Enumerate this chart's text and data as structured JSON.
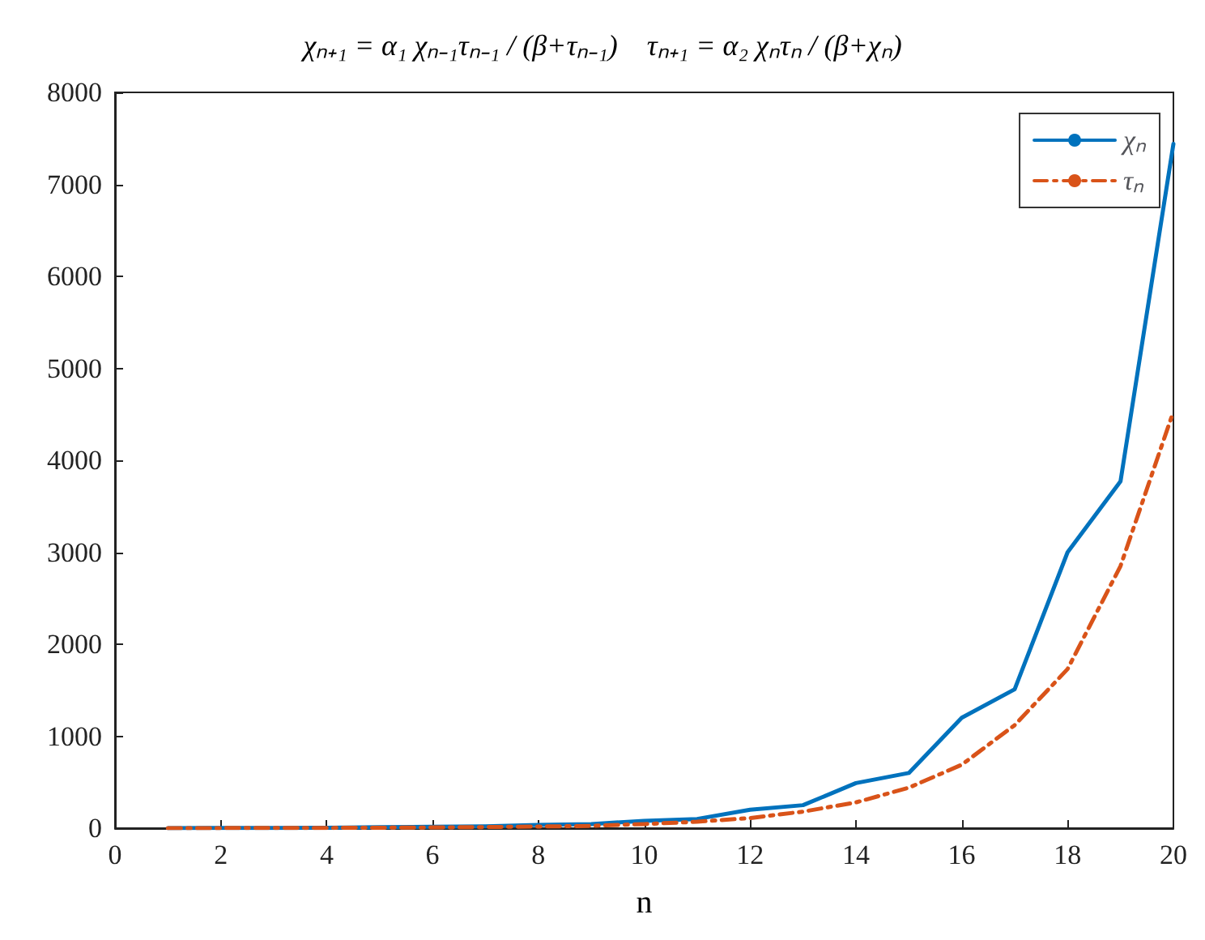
{
  "chart_data": {
    "type": "line",
    "title": "χₙ₊₁ = α₁ χₙ₋₁τₙ₋₁ / (β+τₙ₋₁)    τₙ₊₁ = α₂ χₙτₙ / (β+χₙ)",
    "xlabel": "n",
    "x": [
      1,
      2,
      3,
      4,
      5,
      6,
      7,
      8,
      9,
      10,
      11,
      12,
      13,
      14,
      15,
      16,
      17,
      18,
      19,
      20
    ],
    "series": [
      {
        "name": "χₙ",
        "color": "#0072bd",
        "line_style": "solid",
        "values": [
          1,
          2,
          3,
          5,
          10,
          15,
          20,
          35,
          45,
          80,
          100,
          200,
          250,
          490,
          600,
          1200,
          1510,
          3000,
          3770,
          7440
        ]
      },
      {
        "name": "τₙ",
        "color": "#d95319",
        "line_style": "dashed",
        "values": [
          1,
          1,
          2,
          3,
          5,
          8,
          12,
          18,
          25,
          45,
          70,
          110,
          180,
          280,
          440,
          690,
          1120,
          1730,
          2850,
          4530
        ]
      }
    ],
    "xlim": [
      0,
      20
    ],
    "xticks": [
      0,
      2,
      4,
      6,
      8,
      10,
      12,
      14,
      16,
      18,
      20
    ],
    "ylim": [
      0,
      8000
    ],
    "yticks": [
      0,
      1000,
      2000,
      3000,
      4000,
      5000,
      6000,
      7000,
      8000
    ],
    "grid": false,
    "legend": "top right",
    "marker": "none"
  }
}
